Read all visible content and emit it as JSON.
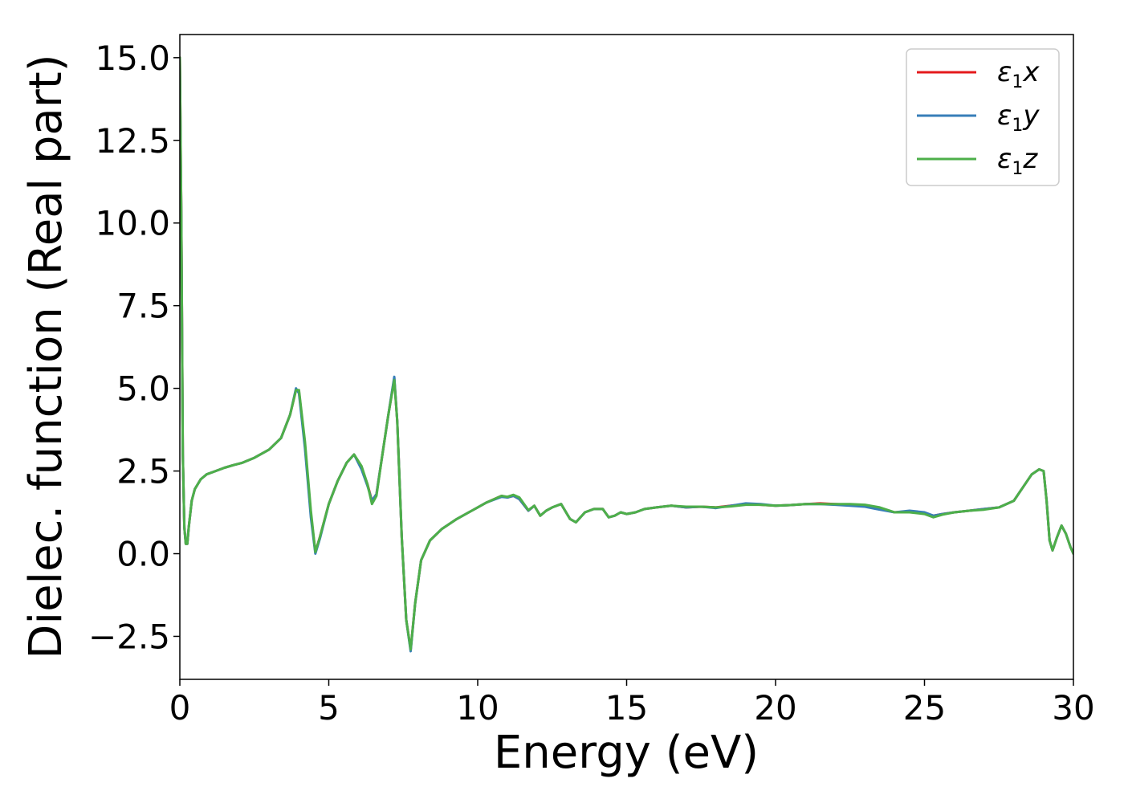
{
  "chart_data": {
    "type": "line",
    "xlabel": "Energy (eV)",
    "ylabel": "Dielec. function (Real part)",
    "xlim": [
      0,
      30
    ],
    "ylim": [
      -3.8,
      15.7
    ],
    "xticks": [
      0,
      5,
      10,
      15,
      20,
      25,
      30
    ],
    "xtick_labels": [
      "0",
      "5",
      "10",
      "15",
      "20",
      "25",
      "30"
    ],
    "yticks": [
      -2.5,
      0.0,
      2.5,
      5.0,
      7.5,
      10.0,
      12.5,
      15.0
    ],
    "ytick_labels": [
      "−2.5",
      "0.0",
      "2.5",
      "5.0",
      "7.5",
      "10.0",
      "12.5",
      "15.0"
    ],
    "grid": false,
    "legend_position": "top-right",
    "series": [
      {
        "name": "ε₁x",
        "label_base": "ε",
        "label_sub": "1",
        "label_var": "x",
        "color": "#e41a1c",
        "x": [
          0.0,
          0.05,
          0.1,
          0.15,
          0.2,
          0.25,
          0.3,
          0.4,
          0.5,
          0.7,
          0.9,
          1.2,
          1.5,
          1.8,
          2.1,
          2.5,
          3.0,
          3.4,
          3.7,
          3.9,
          4.0,
          4.2,
          4.4,
          4.55,
          4.7,
          5.0,
          5.3,
          5.6,
          5.85,
          6.1,
          6.3,
          6.45,
          6.6,
          6.8,
          7.0,
          7.2,
          7.3,
          7.45,
          7.6,
          7.75,
          7.9,
          8.1,
          8.4,
          8.8,
          9.3,
          9.8,
          10.3,
          10.8,
          11.0,
          11.2,
          11.4,
          11.7,
          11.9,
          12.1,
          12.3,
          12.5,
          12.8,
          13.1,
          13.3,
          13.6,
          13.9,
          14.2,
          14.4,
          14.6,
          14.8,
          15.0,
          15.3,
          15.6,
          16.0,
          16.5,
          17.0,
          17.5,
          18.0,
          18.5,
          19.0,
          19.5,
          20.0,
          20.5,
          21.0,
          21.5,
          22.0,
          22.5,
          23.0,
          23.5,
          24.0,
          24.5,
          25.0,
          25.3,
          25.6,
          26.0,
          26.5,
          27.0,
          27.5,
          28.0,
          28.3,
          28.6,
          28.85,
          29.0,
          29.1,
          29.2,
          29.3,
          29.45,
          29.6,
          29.75,
          29.9,
          30.0
        ],
        "y": [
          15.0,
          10.0,
          3.0,
          0.8,
          0.3,
          0.3,
          0.8,
          1.6,
          1.95,
          2.25,
          2.4,
          2.5,
          2.6,
          2.68,
          2.75,
          2.9,
          3.15,
          3.5,
          4.2,
          4.95,
          4.9,
          3.3,
          1.2,
          0.05,
          0.5,
          1.5,
          2.2,
          2.75,
          3.0,
          2.6,
          2.1,
          1.6,
          1.8,
          3.0,
          4.2,
          5.3,
          4.0,
          0.5,
          -2.0,
          -2.9,
          -1.5,
          -0.2,
          0.4,
          0.75,
          1.05,
          1.3,
          1.55,
          1.75,
          1.7,
          1.75,
          1.65,
          1.3,
          1.45,
          1.15,
          1.3,
          1.4,
          1.5,
          1.05,
          0.95,
          1.25,
          1.35,
          1.35,
          1.1,
          1.15,
          1.25,
          1.2,
          1.25,
          1.35,
          1.4,
          1.45,
          1.4,
          1.42,
          1.4,
          1.45,
          1.5,
          1.48,
          1.45,
          1.47,
          1.5,
          1.52,
          1.5,
          1.48,
          1.45,
          1.35,
          1.25,
          1.28,
          1.22,
          1.15,
          1.2,
          1.25,
          1.3,
          1.35,
          1.4,
          1.6,
          2.0,
          2.4,
          2.55,
          2.5,
          1.6,
          0.4,
          0.1,
          0.5,
          0.85,
          0.6,
          0.2,
          0.0
        ]
      },
      {
        "name": "ε₁y",
        "label_base": "ε",
        "label_sub": "1",
        "label_var": "y",
        "color": "#377eb8",
        "x": [
          0.0,
          0.05,
          0.1,
          0.15,
          0.2,
          0.25,
          0.3,
          0.4,
          0.5,
          0.7,
          0.9,
          1.2,
          1.5,
          1.8,
          2.1,
          2.5,
          3.0,
          3.4,
          3.7,
          3.9,
          4.0,
          4.2,
          4.4,
          4.55,
          4.7,
          5.0,
          5.3,
          5.6,
          5.85,
          6.1,
          6.3,
          6.45,
          6.6,
          6.8,
          7.0,
          7.2,
          7.3,
          7.45,
          7.6,
          7.75,
          7.9,
          8.1,
          8.4,
          8.8,
          9.3,
          9.8,
          10.3,
          10.8,
          11.0,
          11.2,
          11.4,
          11.7,
          11.9,
          12.1,
          12.3,
          12.5,
          12.8,
          13.1,
          13.3,
          13.6,
          13.9,
          14.2,
          14.4,
          14.6,
          14.8,
          15.0,
          15.3,
          15.6,
          16.0,
          16.5,
          17.0,
          17.5,
          18.0,
          18.5,
          19.0,
          19.5,
          20.0,
          20.5,
          21.0,
          21.5,
          22.0,
          22.5,
          23.0,
          23.5,
          24.0,
          24.5,
          25.0,
          25.3,
          25.6,
          26.0,
          26.5,
          27.0,
          27.5,
          28.0,
          28.3,
          28.6,
          28.85,
          29.0,
          29.1,
          29.2,
          29.3,
          29.45,
          29.6,
          29.75,
          29.9,
          30.0
        ],
        "y": [
          14.9,
          9.9,
          3.0,
          0.8,
          0.3,
          0.3,
          0.8,
          1.6,
          1.95,
          2.25,
          2.4,
          2.5,
          2.6,
          2.68,
          2.75,
          2.9,
          3.15,
          3.5,
          4.2,
          5.0,
          4.85,
          3.2,
          1.1,
          0.0,
          0.45,
          1.5,
          2.2,
          2.75,
          3.0,
          2.55,
          2.05,
          1.6,
          1.8,
          3.0,
          4.2,
          5.35,
          4.0,
          0.5,
          -2.0,
          -2.95,
          -1.5,
          -0.2,
          0.4,
          0.75,
          1.05,
          1.3,
          1.55,
          1.72,
          1.7,
          1.75,
          1.65,
          1.3,
          1.45,
          1.15,
          1.3,
          1.4,
          1.5,
          1.05,
          0.95,
          1.25,
          1.35,
          1.35,
          1.1,
          1.15,
          1.25,
          1.2,
          1.25,
          1.35,
          1.4,
          1.45,
          1.4,
          1.42,
          1.38,
          1.45,
          1.52,
          1.5,
          1.45,
          1.47,
          1.5,
          1.5,
          1.48,
          1.45,
          1.42,
          1.33,
          1.25,
          1.3,
          1.25,
          1.15,
          1.2,
          1.25,
          1.3,
          1.35,
          1.4,
          1.6,
          2.0,
          2.4,
          2.55,
          2.5,
          1.6,
          0.4,
          0.1,
          0.5,
          0.85,
          0.6,
          0.2,
          0.0
        ]
      },
      {
        "name": "ε₁z",
        "label_base": "ε",
        "label_sub": "1",
        "label_var": "z",
        "color": "#4daf4a",
        "x": [
          0.0,
          0.05,
          0.1,
          0.15,
          0.2,
          0.25,
          0.3,
          0.4,
          0.5,
          0.7,
          0.9,
          1.2,
          1.5,
          1.8,
          2.1,
          2.5,
          3.0,
          3.4,
          3.7,
          3.9,
          4.0,
          4.2,
          4.4,
          4.55,
          4.7,
          5.0,
          5.3,
          5.6,
          5.85,
          6.1,
          6.3,
          6.45,
          6.6,
          6.8,
          7.0,
          7.2,
          7.3,
          7.45,
          7.6,
          7.75,
          7.9,
          8.1,
          8.4,
          8.8,
          9.3,
          9.8,
          10.3,
          10.8,
          11.0,
          11.2,
          11.4,
          11.7,
          11.9,
          12.1,
          12.3,
          12.5,
          12.8,
          13.1,
          13.3,
          13.6,
          13.9,
          14.2,
          14.4,
          14.6,
          14.8,
          15.0,
          15.3,
          15.6,
          16.0,
          16.5,
          17.0,
          17.5,
          18.0,
          18.5,
          19.0,
          19.5,
          20.0,
          20.5,
          21.0,
          21.5,
          22.0,
          22.5,
          23.0,
          23.5,
          24.0,
          24.5,
          25.0,
          25.3,
          25.6,
          26.0,
          26.5,
          27.0,
          27.5,
          28.0,
          28.3,
          28.6,
          28.85,
          29.0,
          29.1,
          29.2,
          29.3,
          29.45,
          29.6,
          29.75,
          29.9,
          30.0
        ],
        "y": [
          15.0,
          10.0,
          3.0,
          0.8,
          0.3,
          0.3,
          0.8,
          1.6,
          1.95,
          2.25,
          2.4,
          2.5,
          2.6,
          2.68,
          2.75,
          2.9,
          3.15,
          3.5,
          4.2,
          4.95,
          4.95,
          3.4,
          1.3,
          0.05,
          0.5,
          1.5,
          2.2,
          2.75,
          3.0,
          2.65,
          2.1,
          1.5,
          1.75,
          3.0,
          4.2,
          5.25,
          4.0,
          0.5,
          -2.0,
          -2.9,
          -1.5,
          -0.2,
          0.4,
          0.75,
          1.05,
          1.3,
          1.55,
          1.75,
          1.72,
          1.78,
          1.7,
          1.32,
          1.45,
          1.15,
          1.3,
          1.4,
          1.5,
          1.05,
          0.95,
          1.25,
          1.35,
          1.35,
          1.1,
          1.15,
          1.25,
          1.2,
          1.25,
          1.35,
          1.4,
          1.45,
          1.42,
          1.42,
          1.4,
          1.43,
          1.48,
          1.48,
          1.45,
          1.47,
          1.5,
          1.5,
          1.5,
          1.5,
          1.48,
          1.4,
          1.25,
          1.25,
          1.2,
          1.1,
          1.18,
          1.25,
          1.3,
          1.33,
          1.4,
          1.6,
          2.0,
          2.4,
          2.55,
          2.5,
          1.6,
          0.4,
          0.1,
          0.5,
          0.85,
          0.6,
          0.2,
          0.0
        ]
      }
    ]
  }
}
